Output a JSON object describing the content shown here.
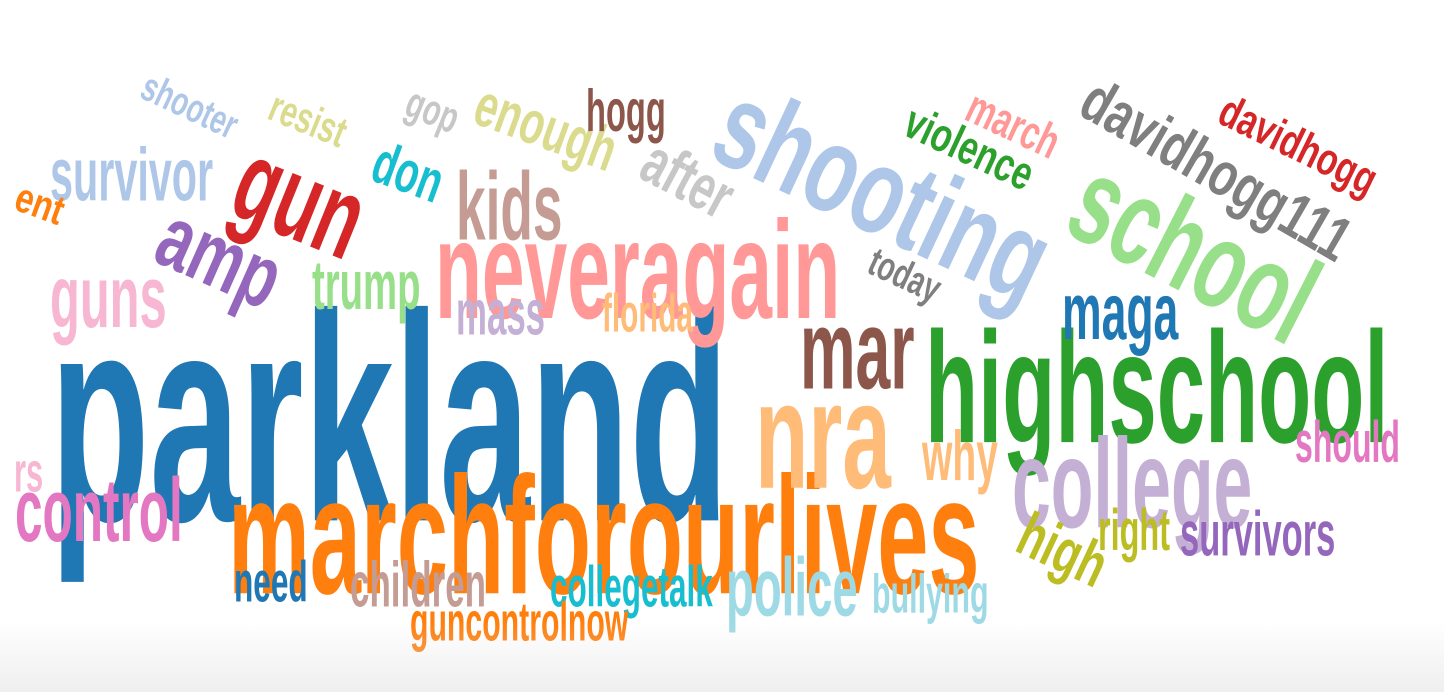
{
  "words": [
    {
      "id": "parkland",
      "text": "parkland",
      "color": "#1f77b4"
    },
    {
      "id": "marchforourlives",
      "text": "marchforourlives",
      "color": "#ff7f0e"
    },
    {
      "id": "highschool",
      "text": "highschool",
      "color": "#2ca02c"
    },
    {
      "id": "shooting",
      "text": "shooting",
      "color": "#aec7e8"
    },
    {
      "id": "school",
      "text": "school",
      "color": "#98df8a"
    },
    {
      "id": "neveragain",
      "text": "neveragain",
      "color": "#ff9896"
    },
    {
      "id": "gun",
      "text": "gun",
      "color": "#d62728"
    },
    {
      "id": "davidhogg111",
      "text": "davidhogg111",
      "color": "#7f7f7f"
    },
    {
      "id": "nra",
      "text": "nra",
      "color": "#ffbb78"
    },
    {
      "id": "college",
      "text": "college",
      "color": "#c5b0d5"
    },
    {
      "id": "amp",
      "text": "amp",
      "color": "#9467bd"
    },
    {
      "id": "davidhogg",
      "text": "davidhogg",
      "color": "#d62728"
    },
    {
      "id": "mar",
      "text": "mar",
      "color": "#8c564b"
    },
    {
      "id": "enough",
      "text": "enough",
      "color": "#dbdb8d"
    },
    {
      "id": "control",
      "text": "control",
      "color": "#e377c2"
    },
    {
      "id": "violence",
      "text": "violence",
      "color": "#2ca02c"
    },
    {
      "id": "maga",
      "text": "maga",
      "color": "#1f77b4"
    },
    {
      "id": "police",
      "text": "police",
      "color": "#9edae5"
    },
    {
      "id": "high",
      "text": "high",
      "color": "#bcbd22"
    },
    {
      "id": "survivor",
      "text": "survivor",
      "color": "#aec7e8"
    },
    {
      "id": "guns",
      "text": "guns",
      "color": "#f7b6d2"
    },
    {
      "id": "kids",
      "text": "kids",
      "color": "#c49c94"
    },
    {
      "id": "march",
      "text": "march",
      "color": "#ff9896"
    },
    {
      "id": "after",
      "text": "after",
      "color": "#c7c7c7"
    },
    {
      "id": "don",
      "text": "don",
      "color": "#17becf"
    },
    {
      "id": "why",
      "text": "why",
      "color": "#ffbb78"
    },
    {
      "id": "shooter",
      "text": "shooter",
      "color": "#aec7e8"
    },
    {
      "id": "hogg",
      "text": "hogg",
      "color": "#8c564b"
    },
    {
      "id": "children",
      "text": "children",
      "color": "#c49c94"
    },
    {
      "id": "survivors",
      "text": "survivors",
      "color": "#9467bd"
    },
    {
      "id": "trump",
      "text": "trump",
      "color": "#98df8a"
    },
    {
      "id": "should",
      "text": "should",
      "color": "#e377c2"
    },
    {
      "id": "resist",
      "text": "resist",
      "color": "#dbdb8d"
    },
    {
      "id": "today",
      "text": "today",
      "color": "#7f7f7f"
    },
    {
      "id": "mass",
      "text": "mass",
      "color": "#c5b0d5"
    },
    {
      "id": "florida",
      "text": "florida",
      "color": "#ffbb78"
    },
    {
      "id": "collegetalk",
      "text": "collegetalk",
      "color": "#17becf"
    },
    {
      "id": "bullying",
      "text": "bullying",
      "color": "#9edae5"
    },
    {
      "id": "need",
      "text": "need",
      "color": "#1f77b4"
    },
    {
      "id": "right",
      "text": "right",
      "color": "#bcbd22"
    },
    {
      "id": "guncontrolnow",
      "text": "guncontrolnow",
      "color": "#ff7f0e"
    },
    {
      "id": "gop",
      "text": "gop",
      "color": "#c7c7c7"
    },
    {
      "id": "ent",
      "text": "ent",
      "color": "#ff7f0e"
    },
    {
      "id": "rs",
      "text": "rs",
      "color": "#f7b6d2"
    }
  ]
}
